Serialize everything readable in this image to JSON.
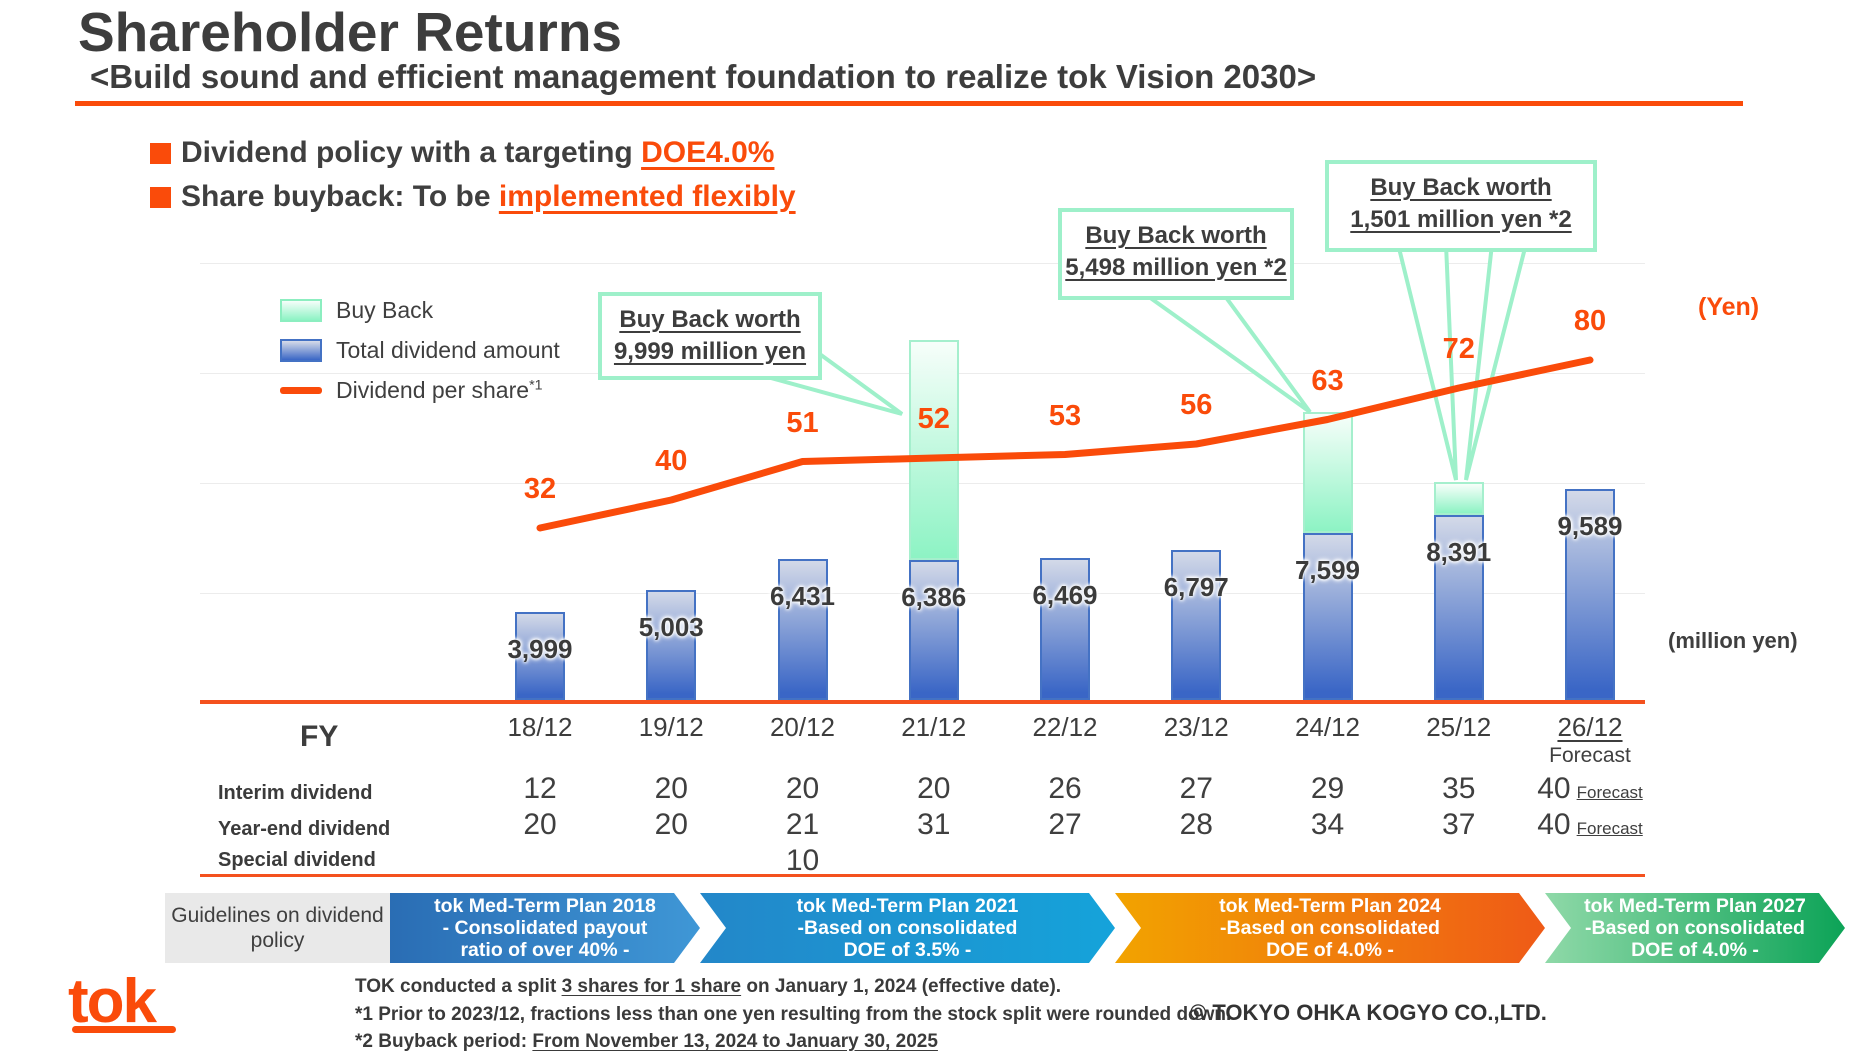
{
  "header": {
    "title": "Shareholder Returns",
    "subtitle": "<Build sound and efficient management foundation to realize tok Vision 2030>"
  },
  "bullets": [
    {
      "pre": "Dividend policy with a targeting ",
      "accent": "DOE4.0%"
    },
    {
      "pre": "Share buyback: To be ",
      "accent": "implemented flexibly"
    }
  ],
  "legend": [
    {
      "label": "Buy Back"
    },
    {
      "label": "Total dividend amount"
    },
    {
      "label": "Dividend per share",
      "sup": "*1"
    }
  ],
  "callouts": [
    {
      "line1": "Buy Back worth",
      "line2": "9,999 million yen"
    },
    {
      "line1": "Buy Back worth",
      "line2": "5,498 million yen *2"
    },
    {
      "line1": "Buy Back worth",
      "line2": "1,501 million yen *2"
    }
  ],
  "axis": {
    "fy_header": "FY",
    "right_unit_line": "(Yen)",
    "right_unit_bar": "(million yen)",
    "last_category_suffix": "Forecast"
  },
  "chart_data": {
    "type": "combo",
    "categories": [
      "18/12",
      "19/12",
      "20/12",
      "21/12",
      "22/12",
      "23/12",
      "24/12",
      "25/12",
      "26/12"
    ],
    "series": [
      {
        "name": "Total dividend amount",
        "type": "bar",
        "unit": "million yen",
        "values": [
          3999,
          5003,
          6431,
          6386,
          6469,
          6797,
          7599,
          8391,
          9589
        ]
      },
      {
        "name": "Buy Back",
        "type": "bar",
        "unit": "million yen",
        "values": [
          0,
          0,
          0,
          9999,
          0,
          0,
          5498,
          1501,
          0
        ]
      },
      {
        "name": "Dividend per share*1",
        "type": "line",
        "unit": "yen",
        "values": [
          32,
          40,
          51,
          52,
          53,
          56,
          63,
          72,
          80
        ]
      }
    ],
    "legend_position": "top-left",
    "grid": true
  },
  "table": {
    "rows": [
      {
        "label": "Interim dividend",
        "values": [
          "12",
          "20",
          "20",
          "20",
          "26",
          "27",
          "29",
          "35",
          "40"
        ],
        "last_suffix": "Forecast"
      },
      {
        "label": "Year-end dividend",
        "values": [
          "20",
          "20",
          "21",
          "31",
          "27",
          "28",
          "34",
          "37",
          "40"
        ],
        "last_suffix": "Forecast"
      },
      {
        "label": "Special dividend",
        "values": [
          "",
          "",
          "10",
          "",
          "",
          "",
          "",
          "",
          ""
        ],
        "last_suffix": ""
      }
    ]
  },
  "ribbon": {
    "guide": "Guidelines on dividend policy",
    "plans": [
      {
        "lines": "tok Med-Term Plan 2018\n-  Consolidated payout\nratio of over 40% -",
        "c1": "#2a6db4",
        "c2": "#3f97d6"
      },
      {
        "lines": "tok Med-Term Plan 2021\n-Based on consolidated\nDOE of 3.5% -",
        "c1": "#2387c9",
        "c2": "#15a3da"
      },
      {
        "lines": "tok Med-Term Plan 2024\n-Based on consolidated\nDOE of 4.0% -",
        "c1": "#f2a300",
        "c2": "#ef5a17"
      },
      {
        "lines": "tok Med-Term Plan 2027\n-Based on consolidated\nDOE of 4.0% -",
        "c1": "#8fd9a8",
        "c2": "#0ca357"
      }
    ]
  },
  "notes": [
    {
      "pre": "TOK conducted a split ",
      "u": "3 shares for 1 share",
      "post": " on January 1, 2024 (effective date)."
    },
    {
      "pre": "*1   Prior to 2023/12, fractions less than one yen resulting from the stock split were rounded down.",
      "u": "",
      "post": ""
    },
    {
      "pre": "*2   Buyback period: ",
      "u": "From November 13, 2024 to January 30, 2025",
      "post": ""
    }
  ],
  "footer": {
    "logo": "tok",
    "copyright": "© TOKYO OHKA KOGYO CO.,LTD."
  },
  "colors": {
    "accent_orange": "#fa4b0a",
    "bar_blue": "#4472c4",
    "buyback_mint": "#8df3c4",
    "callout_border": "#9ef0ca"
  }
}
